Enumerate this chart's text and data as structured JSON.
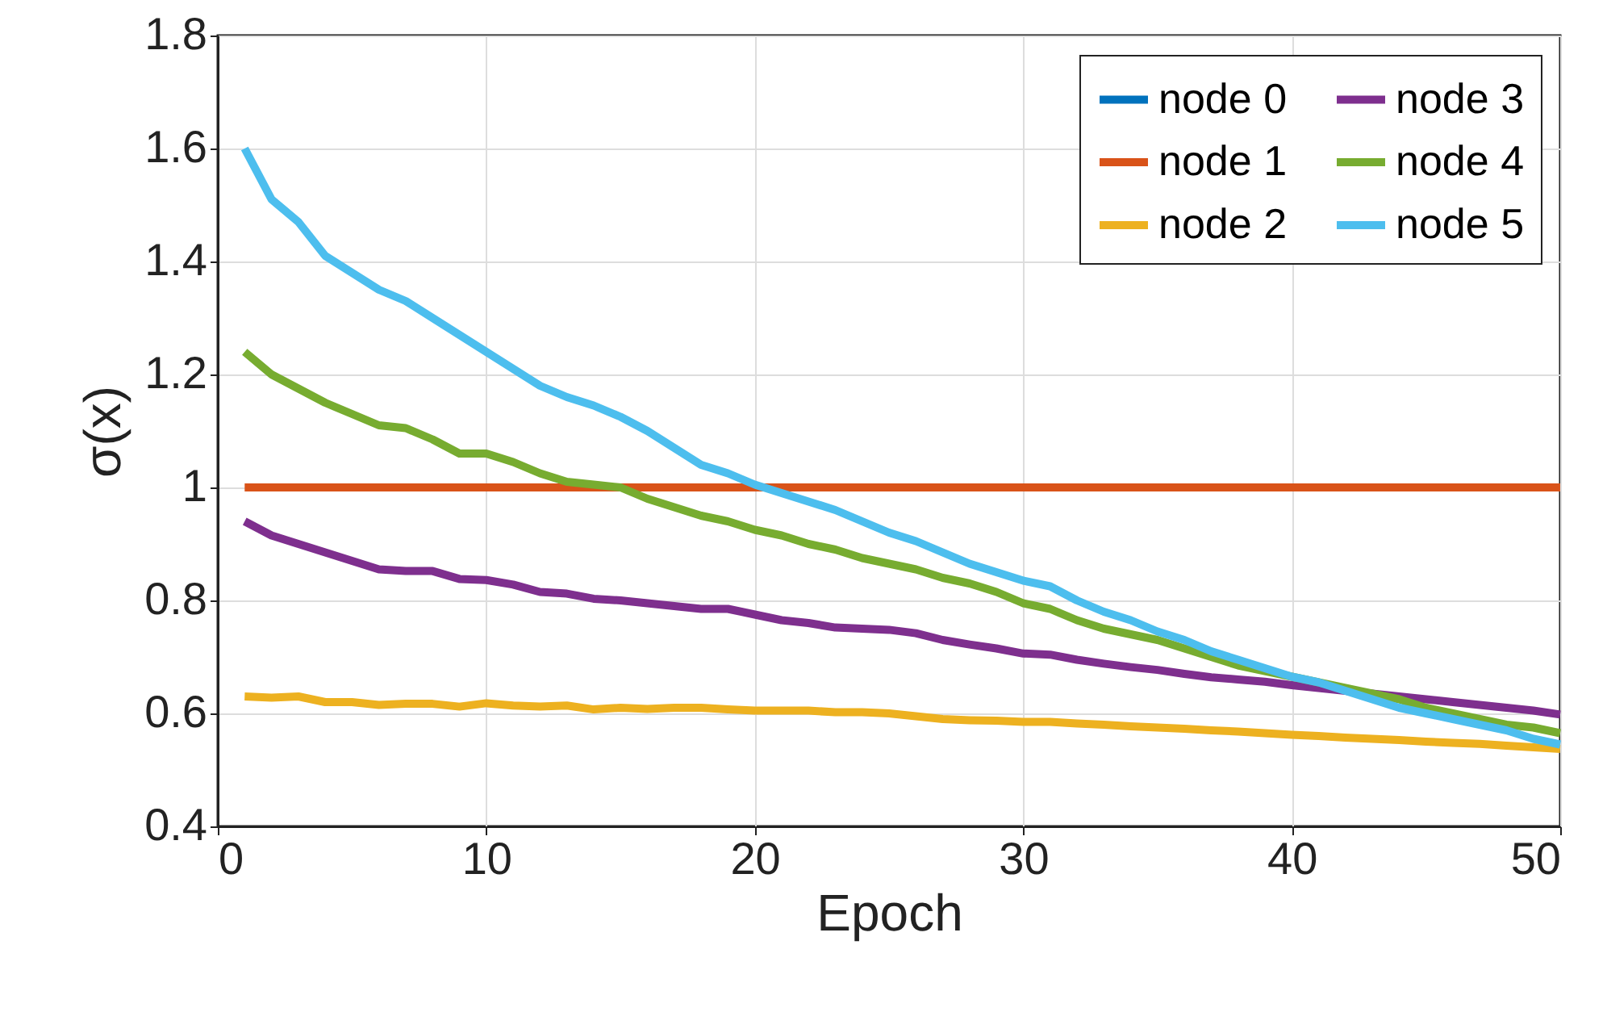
{
  "chart_data": {
    "type": "line",
    "xlabel": "Epoch",
    "ylabel": "σ(x)",
    "x": [
      1,
      2,
      3,
      4,
      5,
      6,
      7,
      8,
      9,
      10,
      11,
      12,
      13,
      14,
      15,
      16,
      17,
      18,
      19,
      20,
      21,
      22,
      23,
      24,
      25,
      26,
      27,
      28,
      29,
      30,
      31,
      32,
      33,
      34,
      35,
      36,
      37,
      38,
      39,
      40,
      41,
      42,
      43,
      44,
      45,
      46,
      47,
      48,
      49,
      50
    ],
    "xlim": [
      0,
      50
    ],
    "xticks": [
      0,
      10,
      20,
      30,
      40,
      50
    ],
    "ylim": [
      0.4,
      1.8
    ],
    "yticks": [
      0.4,
      0.6,
      0.8,
      1,
      1.2,
      1.4,
      1.6,
      1.8
    ],
    "grid": true,
    "legend": "top right",
    "line_style": "solid",
    "marker": "none",
    "series": [
      {
        "name": "node 0",
        "color": "#0072bd",
        "values": [
          null,
          null,
          null,
          null,
          null,
          null,
          null,
          null,
          null,
          null,
          null,
          null,
          null,
          null,
          null,
          null,
          null,
          null,
          null,
          null,
          null,
          null,
          null,
          null,
          null,
          null,
          null,
          null,
          null,
          null,
          null,
          null,
          null,
          null,
          null,
          null,
          null,
          null,
          null,
          null,
          null,
          null,
          null,
          null,
          null,
          null,
          null,
          null,
          null,
          null
        ]
      },
      {
        "name": "node 1",
        "color": "#d95319",
        "values": [
          1,
          1,
          1,
          1,
          1,
          1,
          1,
          1,
          1,
          1,
          1,
          1,
          1,
          1,
          1,
          1,
          1,
          1,
          1,
          1,
          1,
          1,
          1,
          1,
          1,
          1,
          1,
          1,
          1,
          1,
          1,
          1,
          1,
          1,
          1,
          1,
          1,
          1,
          1,
          1,
          1,
          1,
          1,
          1,
          1,
          1,
          1,
          1,
          1,
          1
        ]
      },
      {
        "name": "node 2",
        "color": "#edb120",
        "values": [
          0.63,
          0.628,
          0.63,
          0.62,
          0.62,
          0.615,
          0.617,
          0.617,
          0.612,
          0.618,
          0.614,
          0.612,
          0.614,
          0.607,
          0.61,
          0.608,
          0.61,
          0.61,
          0.607,
          0.605,
          0.605,
          0.605,
          0.602,
          0.602,
          0.6,
          0.595,
          0.59,
          0.588,
          0.587,
          0.585,
          0.585,
          0.582,
          0.58,
          0.577,
          0.575,
          0.573,
          0.57,
          0.568,
          0.565,
          0.562,
          0.56,
          0.557,
          0.555,
          0.553,
          0.55,
          0.548,
          0.546,
          0.543,
          0.54,
          0.537
        ]
      },
      {
        "name": "node 3",
        "color": "#7e2f8e",
        "values": [
          0.94,
          0.915,
          0.9,
          0.885,
          0.87,
          0.855,
          0.852,
          0.852,
          0.838,
          0.836,
          0.828,
          0.815,
          0.812,
          0.803,
          0.8,
          0.795,
          0.79,
          0.785,
          0.785,
          0.775,
          0.765,
          0.76,
          0.752,
          0.75,
          0.748,
          0.742,
          0.73,
          0.722,
          0.715,
          0.706,
          0.704,
          0.695,
          0.688,
          0.682,
          0.677,
          0.67,
          0.664,
          0.66,
          0.656,
          0.65,
          0.645,
          0.64,
          0.635,
          0.63,
          0.625,
          0.62,
          0.615,
          0.61,
          0.605,
          0.598
        ]
      },
      {
        "name": "node 4",
        "color": "#77ac30",
        "values": [
          1.24,
          1.2,
          1.175,
          1.15,
          1.13,
          1.11,
          1.105,
          1.085,
          1.06,
          1.06,
          1.045,
          1.025,
          1.01,
          1.005,
          1.0,
          0.98,
          0.965,
          0.95,
          0.94,
          0.925,
          0.915,
          0.9,
          0.89,
          0.875,
          0.865,
          0.855,
          0.84,
          0.83,
          0.815,
          0.795,
          0.785,
          0.765,
          0.75,
          0.74,
          0.73,
          0.715,
          0.7,
          0.685,
          0.675,
          0.665,
          0.655,
          0.645,
          0.635,
          0.625,
          0.61,
          0.6,
          0.59,
          0.58,
          0.575,
          0.565
        ]
      },
      {
        "name": "node 5",
        "color": "#4dbeee",
        "values": [
          1.6,
          1.51,
          1.47,
          1.41,
          1.38,
          1.35,
          1.33,
          1.3,
          1.27,
          1.24,
          1.21,
          1.18,
          1.16,
          1.145,
          1.125,
          1.1,
          1.07,
          1.04,
          1.025,
          1.005,
          0.99,
          0.975,
          0.96,
          0.94,
          0.92,
          0.905,
          0.885,
          0.865,
          0.85,
          0.835,
          0.825,
          0.8,
          0.78,
          0.765,
          0.745,
          0.73,
          0.71,
          0.695,
          0.68,
          0.665,
          0.655,
          0.64,
          0.625,
          0.61,
          0.6,
          0.59,
          0.58,
          0.57,
          0.555,
          0.545
        ]
      }
    ]
  }
}
